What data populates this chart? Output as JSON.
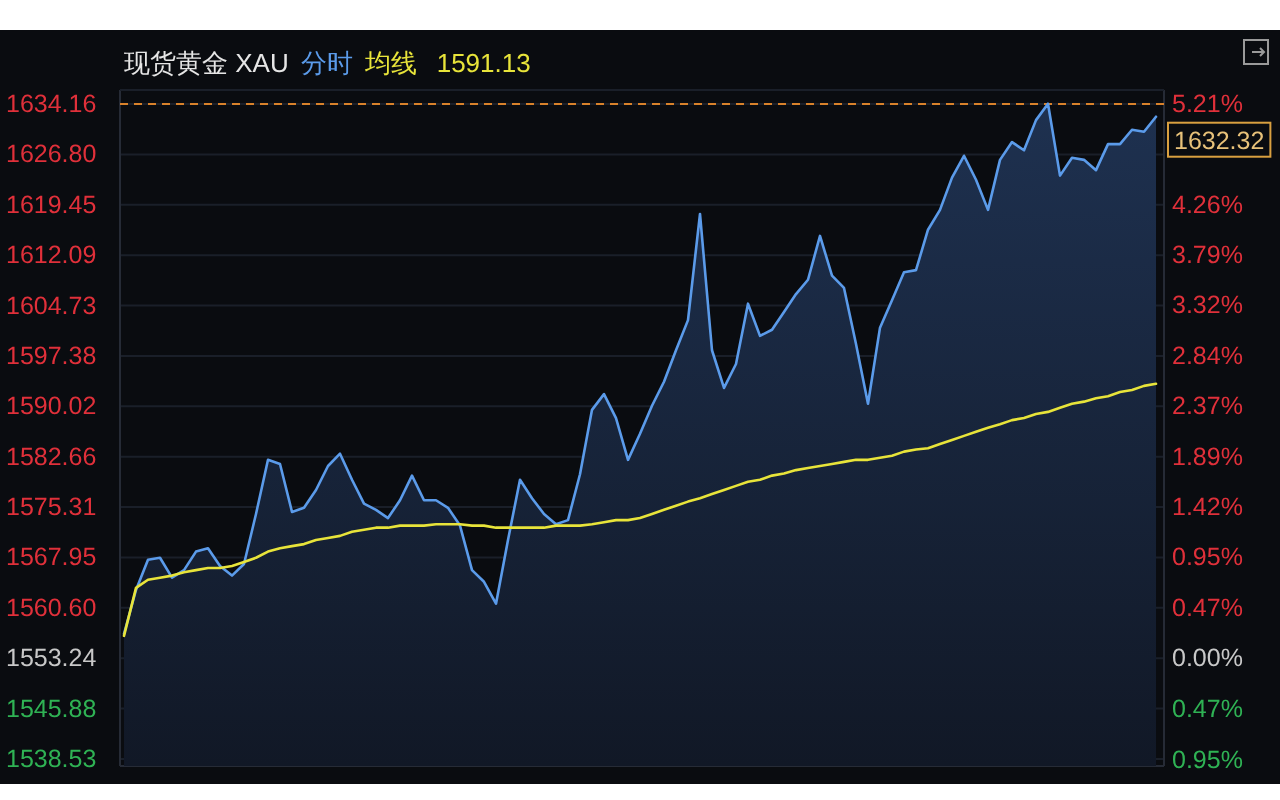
{
  "chart_data": {
    "type": "line",
    "title": "现货黄金 XAU",
    "categories": [
      null,
      null,
      null,
      null,
      null,
      null,
      null,
      null,
      null,
      null,
      null,
      null,
      null,
      null,
      null,
      null,
      null,
      null,
      null,
      null,
      null,
      null,
      null,
      null,
      null,
      null,
      null,
      null,
      null,
      null,
      null,
      null,
      null,
      null,
      null,
      null,
      null,
      null,
      null,
      null,
      null,
      null,
      null,
      null,
      null,
      null,
      null,
      null,
      null,
      null,
      null,
      null,
      null,
      null,
      null,
      null,
      null,
      null,
      null,
      null,
      null,
      null,
      null,
      null,
      null,
      null,
      null,
      null,
      null,
      null,
      null,
      null,
      null,
      null,
      null,
      null,
      null,
      null,
      null,
      null,
      null,
      null,
      null,
      null,
      null,
      null,
      null
    ],
    "series": [
      {
        "name": "分时",
        "type": "area",
        "color": "#5b9bea",
        "values": [
          1556.8,
          1563.2,
          1567.6,
          1567.9,
          1565.0,
          1566.1,
          1568.8,
          1569.3,
          1566.7,
          1565.3,
          1567.0,
          1574.3,
          1582.2,
          1581.6,
          1574.6,
          1575.2,
          1577.8,
          1581.3,
          1583.1,
          1579.3,
          1575.8,
          1574.9,
          1573.7,
          1576.3,
          1579.9,
          1576.3,
          1576.3,
          1575.2,
          1572.6,
          1566.1,
          1564.4,
          1561.2,
          1570.5,
          1579.3,
          1576.6,
          1574.3,
          1572.8,
          1573.4,
          1580.1,
          1589.5,
          1591.8,
          1588.3,
          1582.2,
          1586.0,
          1590.1,
          1593.6,
          1598.2,
          1602.6,
          1618.1,
          1598.2,
          1592.7,
          1596.2,
          1605.0,
          1600.3,
          1601.2,
          1603.8,
          1606.4,
          1608.5,
          1614.9,
          1609.1,
          1607.3,
          1599.1,
          1590.4,
          1601.5,
          1605.5,
          1609.6,
          1609.9,
          1615.8,
          1618.7,
          1623.4,
          1626.6,
          1623.1,
          1618.7,
          1626.0,
          1628.6,
          1627.4,
          1631.8,
          1634.2,
          1623.7,
          1626.3,
          1626.0,
          1624.5,
          1628.3,
          1628.3,
          1630.4,
          1630.1,
          1632.3
        ]
      },
      {
        "name": "均线",
        "color": "#e8e43a",
        "values": [
          1556.5,
          1563.5,
          1564.7,
          1565.0,
          1565.3,
          1565.8,
          1566.1,
          1566.4,
          1566.4,
          1566.7,
          1567.3,
          1567.9,
          1568.8,
          1569.3,
          1569.6,
          1569.9,
          1570.5,
          1570.8,
          1571.1,
          1571.7,
          1572.0,
          1572.3,
          1572.3,
          1572.6,
          1572.6,
          1572.6,
          1572.8,
          1572.8,
          1572.8,
          1572.6,
          1572.6,
          1572.3,
          1572.3,
          1572.3,
          1572.3,
          1572.3,
          1572.6,
          1572.6,
          1572.6,
          1572.8,
          1573.1,
          1573.4,
          1573.4,
          1573.7,
          1574.3,
          1574.9,
          1575.5,
          1576.1,
          1576.6,
          1577.2,
          1577.8,
          1578.4,
          1579.0,
          1579.3,
          1579.9,
          1580.2,
          1580.7,
          1581.0,
          1581.3,
          1581.6,
          1581.9,
          1582.2,
          1582.2,
          1582.5,
          1582.8,
          1583.4,
          1583.7,
          1583.9,
          1584.5,
          1585.1,
          1585.7,
          1586.3,
          1586.9,
          1587.4,
          1588.0,
          1588.3,
          1588.9,
          1589.2,
          1589.8,
          1590.4,
          1590.7,
          1591.2,
          1591.5,
          1592.1,
          1592.4,
          1593.0,
          1593.3
        ]
      }
    ],
    "ylim": [
      1537.5,
      1636.2
    ],
    "yticks": [
      {
        "value": 1634.16,
        "label": "1634.16"
      },
      {
        "value": 1626.8,
        "label": "1626.80"
      },
      {
        "value": 1619.45,
        "label": "1619.45"
      },
      {
        "value": 1612.09,
        "label": "1612.09"
      },
      {
        "value": 1604.73,
        "label": "1604.73"
      },
      {
        "value": 1597.38,
        "label": "1597.38"
      },
      {
        "value": 1590.02,
        "label": "1590.02"
      },
      {
        "value": 1582.66,
        "label": "1582.66"
      },
      {
        "value": 1575.31,
        "label": "1575.31"
      },
      {
        "value": 1567.95,
        "label": "1567.95"
      },
      {
        "value": 1560.6,
        "label": "1560.60"
      },
      {
        "value": 1553.24,
        "label": "1553.24"
      },
      {
        "value": 1545.88,
        "label": "1545.88"
      },
      {
        "value": 1538.53,
        "label": "1538.53"
      }
    ],
    "y2lim": [
      -1.01,
      5.34
    ],
    "y2ticks": [
      {
        "value": 5.21,
        "label": "5.21%"
      },
      {
        "value": 4.26,
        "label": "4.26%"
      },
      {
        "value": 3.79,
        "label": "3.79%"
      },
      {
        "value": 3.32,
        "label": "3.32%"
      },
      {
        "value": 2.84,
        "label": "2.84%"
      },
      {
        "value": 2.37,
        "label": "2.37%"
      },
      {
        "value": 1.89,
        "label": "1.89%"
      },
      {
        "value": 1.42,
        "label": "1.42%"
      },
      {
        "value": 0.95,
        "label": "0.95%"
      },
      {
        "value": 0.47,
        "label": "0.47%"
      },
      {
        "value": 0,
        "label": "0.00%"
      },
      {
        "value": -0.47,
        "label": "0.47%"
      },
      {
        "value": -0.95,
        "label": "0.95%"
      }
    ],
    "ref_lines": [
      {
        "axis": "y",
        "value": 1634.16,
        "color": "#d9822b",
        "line_style": "dashed"
      }
    ],
    "annotations": [
      "1632.32",
      "1591.13"
    ],
    "grid": "y",
    "legend": "top left"
  }
}
